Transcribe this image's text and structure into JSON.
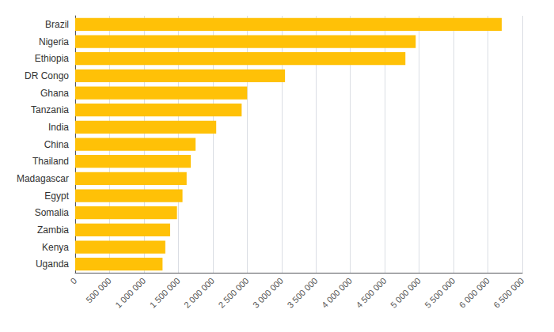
{
  "chart_data": {
    "type": "bar",
    "orientation": "horizontal",
    "categories": [
      "Brazil",
      "Nigeria",
      "Ethiopia",
      "DR Congo",
      "Ghana",
      "Tanzania",
      "India",
      "China",
      "Thailand",
      "Madagascar",
      "Egypt",
      "Somalia",
      "Zambia",
      "Kenya",
      "Uganda"
    ],
    "values": [
      6200000,
      4950000,
      4800000,
      3050000,
      2500000,
      2420000,
      2050000,
      1750000,
      1680000,
      1620000,
      1560000,
      1480000,
      1380000,
      1310000,
      1270000
    ],
    "color": "#FFC107",
    "xlim": [
      0,
      6500000
    ],
    "xticks": [
      0,
      {
        "value": 500000,
        "label": "500 000"
      },
      {
        "value": 1000000,
        "label": "1 000 000"
      },
      {
        "value": 1500000,
        "label": "1 500 000"
      },
      {
        "value": 2000000,
        "label": "2 000 000"
      },
      {
        "value": 2500000,
        "label": "2 500 000"
      },
      {
        "value": 3000000,
        "label": "3 000 000"
      },
      {
        "value": 3500000,
        "label": "3 500 000"
      },
      {
        "value": 4000000,
        "label": "4 000 000"
      },
      {
        "value": 4500000,
        "label": "4 500 000"
      },
      {
        "value": 5000000,
        "label": "5 000 000"
      },
      {
        "value": 5500000,
        "label": "5 500 000"
      },
      {
        "value": 6000000,
        "label": "6 000 000"
      },
      {
        "value": 6500000,
        "label": "6 500 000"
      }
    ],
    "grid": true
  }
}
